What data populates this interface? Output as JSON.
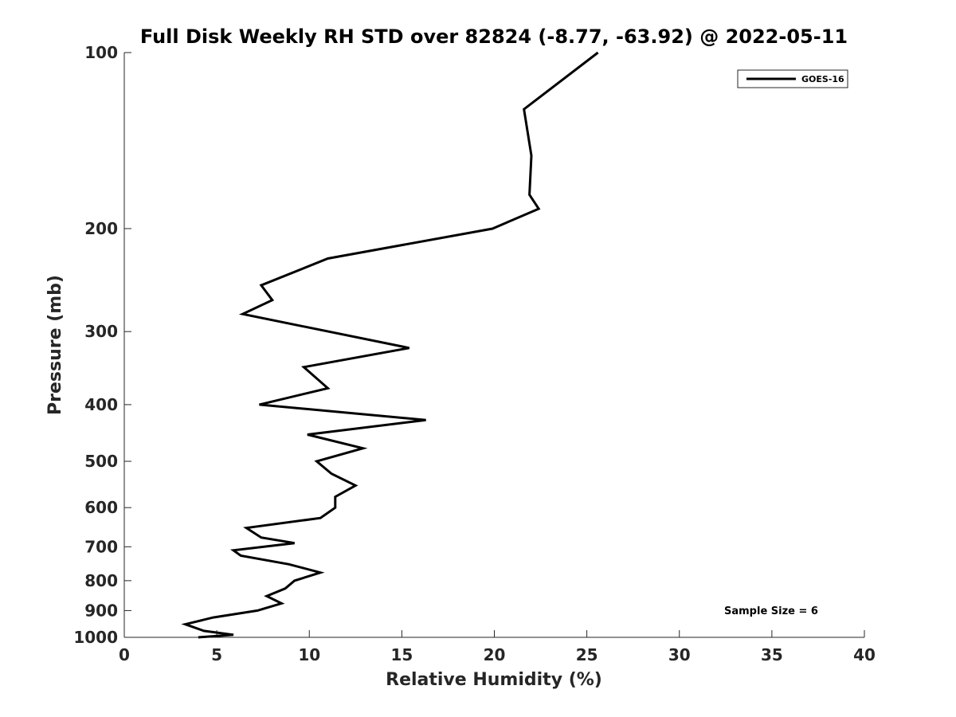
{
  "chart_data": {
    "type": "line",
    "title": "Full Disk Weekly RH STD over 82824 (-8.77, -63.92) @ 2022-05-11",
    "xlabel": "Relative Humidity (%)",
    "ylabel": "Pressure (mb)",
    "xlim": [
      0,
      40
    ],
    "ylim": [
      100,
      1000
    ],
    "yscale": "log",
    "y_reversed": true,
    "x_ticks": [
      0,
      5,
      10,
      15,
      20,
      25,
      30,
      35,
      40
    ],
    "y_ticks": [
      100,
      200,
      300,
      400,
      500,
      600,
      700,
      800,
      900,
      1000
    ],
    "grid": false,
    "legend_position": "top-right",
    "series": [
      {
        "name": "GOES-16",
        "color": "#000000",
        "points": [
          {
            "p": 100,
            "v": 25.6
          },
          {
            "p": 125,
            "v": 21.6
          },
          {
            "p": 150,
            "v": 22.0
          },
          {
            "p": 175,
            "v": 21.9
          },
          {
            "p": 185,
            "v": 22.4
          },
          {
            "p": 200,
            "v": 19.9
          },
          {
            "p": 225,
            "v": 11.0
          },
          {
            "p": 250,
            "v": 7.4
          },
          {
            "p": 265,
            "v": 8.0
          },
          {
            "p": 280,
            "v": 6.4
          },
          {
            "p": 320,
            "v": 15.4
          },
          {
            "p": 345,
            "v": 9.7
          },
          {
            "p": 375,
            "v": 11.0
          },
          {
            "p": 400,
            "v": 7.3
          },
          {
            "p": 425,
            "v": 16.3
          },
          {
            "p": 450,
            "v": 9.9
          },
          {
            "p": 475,
            "v": 12.9
          },
          {
            "p": 500,
            "v": 10.4
          },
          {
            "p": 525,
            "v": 11.2
          },
          {
            "p": 550,
            "v": 12.5
          },
          {
            "p": 575,
            "v": 11.4
          },
          {
            "p": 600,
            "v": 11.4
          },
          {
            "p": 625,
            "v": 10.6
          },
          {
            "p": 650,
            "v": 6.6
          },
          {
            "p": 675,
            "v": 7.4
          },
          {
            "p": 690,
            "v": 9.2
          },
          {
            "p": 710,
            "v": 5.9
          },
          {
            "p": 725,
            "v": 6.3
          },
          {
            "p": 750,
            "v": 8.9
          },
          {
            "p": 775,
            "v": 10.6
          },
          {
            "p": 800,
            "v": 9.2
          },
          {
            "p": 825,
            "v": 8.7
          },
          {
            "p": 850,
            "v": 7.7
          },
          {
            "p": 875,
            "v": 8.5
          },
          {
            "p": 900,
            "v": 7.2
          },
          {
            "p": 925,
            "v": 4.8
          },
          {
            "p": 950,
            "v": 3.3
          },
          {
            "p": 975,
            "v": 4.3
          },
          {
            "p": 990,
            "v": 5.9
          },
          {
            "p": 1000,
            "v": 4.0
          }
        ]
      }
    ],
    "annotations": [
      "Sample Size = 6"
    ]
  }
}
